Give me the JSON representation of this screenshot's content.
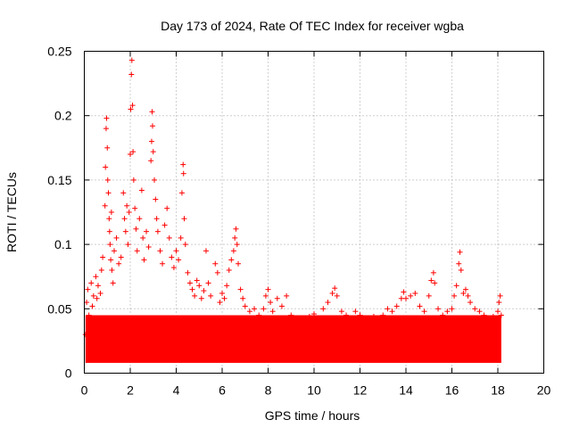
{
  "chart_data": {
    "type": "scatter",
    "title": "Day 173 of 2024, Rate Of TEC Index for receiver wgba",
    "xlabel": "GPS time / hours",
    "ylabel": "ROTI / TECUs",
    "xlim": [
      0,
      20
    ],
    "ylim": [
      0,
      0.25
    ],
    "xticks": [
      0,
      2,
      4,
      6,
      8,
      10,
      12,
      14,
      16,
      18,
      20
    ],
    "yticks": [
      0,
      0.05,
      0.1,
      0.15,
      0.2,
      0.25
    ],
    "ytick_labels": [
      "0",
      "0.05",
      "0.1",
      "0.15",
      "0.2",
      "0.25"
    ],
    "grid": true,
    "marker": "+",
    "series": [
      {
        "name": "ROTI",
        "color": "#ff0000",
        "points": [
          [
            0.05,
            0.03
          ],
          [
            0.1,
            0.055
          ],
          [
            0.15,
            0.065
          ],
          [
            0.2,
            0.045
          ],
          [
            0.25,
            0.038
          ],
          [
            0.3,
            0.07
          ],
          [
            0.35,
            0.052
          ],
          [
            0.4,
            0.06
          ],
          [
            0.45,
            0.04
          ],
          [
            0.5,
            0.075
          ],
          [
            0.55,
            0.058
          ],
          [
            0.6,
            0.068
          ],
          [
            0.7,
            0.062
          ],
          [
            0.75,
            0.08
          ],
          [
            0.8,
            0.09
          ],
          [
            0.9,
            0.13
          ],
          [
            0.92,
            0.16
          ],
          [
            0.95,
            0.19
          ],
          [
            0.97,
            0.198
          ],
          [
            1.0,
            0.175
          ],
          [
            1.02,
            0.15
          ],
          [
            1.05,
            0.14
          ],
          [
            1.08,
            0.12
          ],
          [
            1.1,
            0.11
          ],
          [
            1.12,
            0.1
          ],
          [
            1.15,
            0.088
          ],
          [
            1.18,
            0.125
          ],
          [
            1.2,
            0.08
          ],
          [
            1.25,
            0.07
          ],
          [
            1.3,
            0.095
          ],
          [
            1.4,
            0.105
          ],
          [
            1.5,
            0.085
          ],
          [
            1.6,
            0.09
          ],
          [
            1.7,
            0.14
          ],
          [
            1.75,
            0.12
          ],
          [
            1.8,
            0.11
          ],
          [
            1.85,
            0.13
          ],
          [
            1.9,
            0.1
          ],
          [
            1.95,
            0.125
          ],
          [
            2.0,
            0.17
          ],
          [
            2.02,
            0.205
          ],
          [
            2.05,
            0.232
          ],
          [
            2.07,
            0.243
          ],
          [
            2.1,
            0.208
          ],
          [
            2.12,
            0.172
          ],
          [
            2.15,
            0.15
          ],
          [
            2.2,
            0.128
          ],
          [
            2.25,
            0.112
          ],
          [
            2.3,
            0.095
          ],
          [
            2.4,
            0.12
          ],
          [
            2.5,
            0.142
          ],
          [
            2.55,
            0.105
          ],
          [
            2.6,
            0.088
          ],
          [
            2.7,
            0.11
          ],
          [
            2.8,
            0.098
          ],
          [
            2.9,
            0.165
          ],
          [
            2.93,
            0.18
          ],
          [
            2.95,
            0.203
          ],
          [
            2.97,
            0.192
          ],
          [
            3.0,
            0.172
          ],
          [
            3.05,
            0.15
          ],
          [
            3.1,
            0.135
          ],
          [
            3.15,
            0.12
          ],
          [
            3.2,
            0.11
          ],
          [
            3.3,
            0.095
          ],
          [
            3.4,
            0.085
          ],
          [
            3.5,
            0.115
          ],
          [
            3.6,
            0.128
          ],
          [
            3.7,
            0.105
          ],
          [
            3.8,
            0.09
          ],
          [
            3.9,
            0.082
          ],
          [
            4.0,
            0.095
          ],
          [
            4.1,
            0.088
          ],
          [
            4.2,
            0.105
          ],
          [
            4.25,
            0.14
          ],
          [
            4.3,
            0.162
          ],
          [
            4.32,
            0.155
          ],
          [
            4.35,
            0.12
          ],
          [
            4.4,
            0.1
          ],
          [
            4.5,
            0.078
          ],
          [
            4.6,
            0.07
          ],
          [
            4.7,
            0.065
          ],
          [
            4.8,
            0.06
          ],
          [
            4.9,
            0.072
          ],
          [
            5.0,
            0.068
          ],
          [
            5.1,
            0.058
          ],
          [
            5.2,
            0.064
          ],
          [
            5.3,
            0.095
          ],
          [
            5.4,
            0.07
          ],
          [
            5.5,
            0.06
          ],
          [
            5.7,
            0.085
          ],
          [
            5.8,
            0.078
          ],
          [
            5.9,
            0.055
          ],
          [
            6.0,
            0.062
          ],
          [
            6.1,
            0.058
          ],
          [
            6.2,
            0.068
          ],
          [
            6.3,
            0.08
          ],
          [
            6.4,
            0.088
          ],
          [
            6.5,
            0.095
          ],
          [
            6.55,
            0.105
          ],
          [
            6.6,
            0.112
          ],
          [
            6.65,
            0.1
          ],
          [
            6.7,
            0.085
          ],
          [
            6.8,
            0.065
          ],
          [
            6.9,
            0.058
          ],
          [
            7.0,
            0.052
          ],
          [
            7.2,
            0.048
          ],
          [
            7.4,
            0.05
          ],
          [
            7.6,
            0.045
          ],
          [
            7.8,
            0.05
          ],
          [
            7.9,
            0.06
          ],
          [
            8.0,
            0.065
          ],
          [
            8.1,
            0.055
          ],
          [
            8.2,
            0.048
          ],
          [
            8.4,
            0.058
          ],
          [
            8.6,
            0.052
          ],
          [
            8.8,
            0.06
          ],
          [
            9.0,
            0.045
          ],
          [
            9.2,
            0.042
          ],
          [
            9.4,
            0.04
          ],
          [
            9.6,
            0.038
          ],
          [
            9.8,
            0.044
          ],
          [
            10.0,
            0.046
          ],
          [
            10.2,
            0.042
          ],
          [
            10.4,
            0.05
          ],
          [
            10.6,
            0.055
          ],
          [
            10.8,
            0.062
          ],
          [
            10.9,
            0.066
          ],
          [
            11.0,
            0.06
          ],
          [
            11.2,
            0.048
          ],
          [
            11.4,
            0.045
          ],
          [
            11.6,
            0.042
          ],
          [
            11.8,
            0.048
          ],
          [
            12.0,
            0.045
          ],
          [
            12.2,
            0.042
          ],
          [
            12.4,
            0.04
          ],
          [
            12.6,
            0.044
          ],
          [
            12.8,
            0.042
          ],
          [
            13.0,
            0.045
          ],
          [
            13.2,
            0.05
          ],
          [
            13.4,
            0.048
          ],
          [
            13.6,
            0.052
          ],
          [
            13.8,
            0.058
          ],
          [
            13.9,
            0.063
          ],
          [
            14.0,
            0.058
          ],
          [
            14.2,
            0.06
          ],
          [
            14.4,
            0.062
          ],
          [
            14.6,
            0.052
          ],
          [
            14.8,
            0.048
          ],
          [
            15.0,
            0.06
          ],
          [
            15.1,
            0.072
          ],
          [
            15.2,
            0.078
          ],
          [
            15.25,
            0.07
          ],
          [
            15.4,
            0.05
          ],
          [
            15.6,
            0.045
          ],
          [
            15.8,
            0.048
          ],
          [
            16.0,
            0.05
          ],
          [
            16.1,
            0.06
          ],
          [
            16.2,
            0.068
          ],
          [
            16.3,
            0.085
          ],
          [
            16.35,
            0.094
          ],
          [
            16.4,
            0.08
          ],
          [
            16.5,
            0.062
          ],
          [
            16.6,
            0.065
          ],
          [
            16.7,
            0.06
          ],
          [
            16.8,
            0.055
          ],
          [
            17.0,
            0.05
          ],
          [
            17.2,
            0.048
          ],
          [
            17.4,
            0.045
          ],
          [
            17.6,
            0.042
          ],
          [
            17.8,
            0.044
          ],
          [
            18.0,
            0.048
          ],
          [
            18.05,
            0.055
          ],
          [
            18.1,
            0.06
          ],
          [
            18.15,
            0.045
          ]
        ]
      }
    ]
  }
}
